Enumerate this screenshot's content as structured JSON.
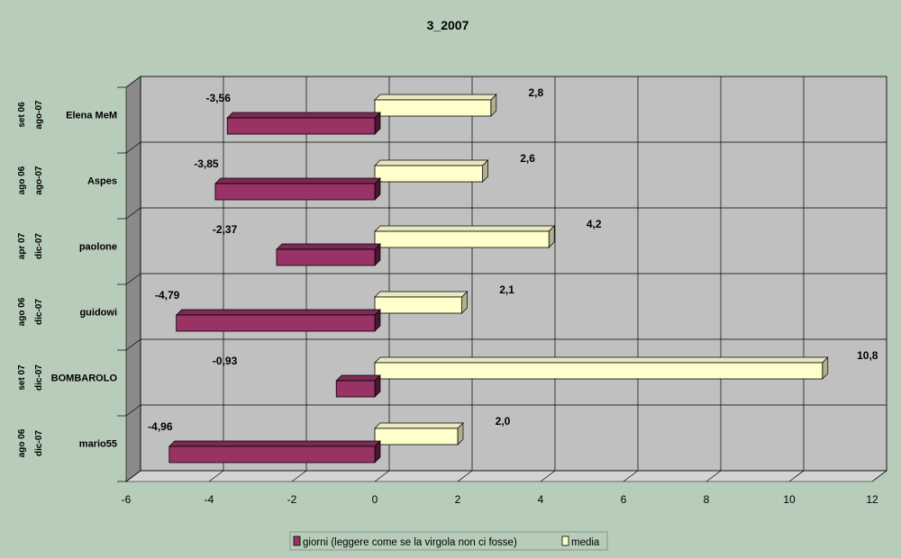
{
  "chart_data": {
    "type": "bar",
    "orientation": "horizontal",
    "title": "3_2007",
    "categories": [
      {
        "name": "Elena MeM",
        "dates": [
          "set 06",
          "ago-07"
        ]
      },
      {
        "name": "Aspes",
        "dates": [
          "ago 06",
          "ago-07"
        ]
      },
      {
        "name": "paolone",
        "dates": [
          "apr 07",
          "dic-07"
        ]
      },
      {
        "name": "guidowi",
        "dates": [
          "ago 06",
          "dic-07"
        ]
      },
      {
        "name": "BOMBAROLO",
        "dates": [
          "set 07",
          "dic-07"
        ]
      },
      {
        "name": "mario55",
        "dates": [
          "ago 06",
          "dic-07"
        ]
      }
    ],
    "series": [
      {
        "name": "giorni (leggere come se la virgola non ci fosse)",
        "color": "#993366",
        "values": [
          -3.56,
          -3.85,
          -2.37,
          -4.79,
          -0.93,
          -4.96
        ],
        "labels": [
          "-3,56",
          "-3,85",
          "-2,37",
          "-4,79",
          "-0,93",
          "-4,96"
        ]
      },
      {
        "name": "media",
        "color": "#ffffcc",
        "values": [
          2.8,
          2.6,
          4.2,
          2.1,
          10.8,
          2.0
        ],
        "labels": [
          "2,8",
          "2,6",
          "4,2",
          "2,1",
          "10,8",
          "2,0"
        ]
      }
    ],
    "xlim": [
      -6,
      12
    ],
    "xticks": [
      -6,
      -4,
      -2,
      0,
      2,
      4,
      6,
      8,
      10,
      12
    ],
    "xtick_labels": [
      "-6",
      "-4",
      "-2",
      "0",
      "2",
      "4",
      "6",
      "8",
      "10",
      "12"
    ],
    "grid": true,
    "legend_position": "bottom",
    "colors": {
      "background": "#b8ccba",
      "wall": "#c0c0c0",
      "wall_side": "#8a8a8a",
      "floor": "#d4d4d4"
    }
  }
}
